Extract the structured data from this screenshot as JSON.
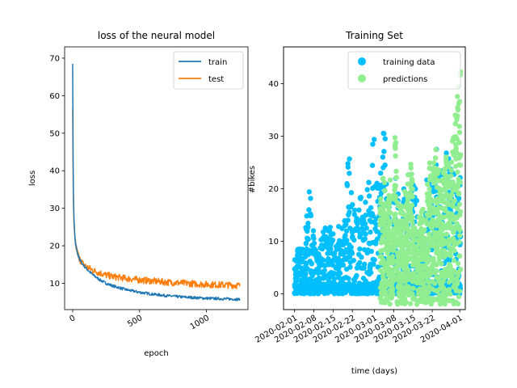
{
  "chart_data": [
    {
      "type": "line",
      "title": "loss of the neural model",
      "xlabel": "epoch",
      "ylabel": "loss",
      "xlim": [
        -60,
        1310
      ],
      "ylim": [
        3,
        73
      ],
      "xticks": [
        0,
        500,
        1000
      ],
      "yticks": [
        10,
        20,
        30,
        40,
        50,
        60,
        70
      ],
      "legend": "top-right",
      "series": [
        {
          "name": "train",
          "color": "#1f77b4",
          "x": [
            0,
            3,
            6,
            10,
            15,
            20,
            30,
            40,
            50,
            70,
            100,
            150,
            200,
            250,
            300,
            400,
            500,
            600,
            700,
            800,
            900,
            1000,
            1100,
            1200,
            1250
          ],
          "y": [
            68.5,
            45,
            33,
            27,
            23.5,
            21,
            19,
            17.5,
            16.5,
            15.3,
            14,
            12.3,
            11,
            10,
            9.3,
            8.3,
            7.6,
            7.1,
            6.7,
            6.4,
            6.2,
            6.0,
            5.9,
            5.8,
            5.7
          ]
        },
        {
          "name": "test",
          "color": "#ff7f0e",
          "x": [
            0,
            3,
            6,
            10,
            15,
            20,
            30,
            40,
            50,
            70,
            100,
            150,
            200,
            250,
            300,
            400,
            500,
            600,
            700,
            800,
            900,
            1000,
            1100,
            1200,
            1250
          ],
          "y": [
            56.5,
            40,
            31,
            26,
            23,
            21,
            19,
            17.5,
            16.5,
            15.5,
            14.5,
            13.5,
            12.8,
            12.2,
            11.8,
            11.3,
            10.9,
            10.6,
            10.3,
            10.1,
            9.9,
            9.7,
            9.6,
            9.5,
            9.4
          ]
        }
      ]
    },
    {
      "type": "scatter",
      "title": "Training Set",
      "xlabel": "time (days)",
      "ylabel": "#bikes",
      "xlim": [
        "2020-01-28",
        "2020-04-03"
      ],
      "ylim": [
        -3,
        47
      ],
      "xticks": [
        "2020-02-01",
        "2020-02-08",
        "2020-02-15",
        "2020-02-22",
        "2020-03-01",
        "2020-03-08",
        "2020-03-15",
        "2020-03-22",
        "2020-04-01"
      ],
      "yticks": [
        0,
        10,
        20,
        30,
        40
      ],
      "legend": "top-right",
      "series": [
        {
          "name": "training data",
          "color": "#00bfff",
          "x": [
            "2020-02-01",
            "2020-02-02",
            "2020-02-03",
            "2020-02-04",
            "2020-02-05",
            "2020-02-06",
            "2020-02-07",
            "2020-02-08",
            "2020-02-09",
            "2020-02-10",
            "2020-02-11",
            "2020-02-12",
            "2020-02-13",
            "2020-02-14",
            "2020-02-15",
            "2020-02-16",
            "2020-02-17",
            "2020-02-18",
            "2020-02-19",
            "2020-02-20",
            "2020-02-21",
            "2020-02-22",
            "2020-02-23",
            "2020-02-24",
            "2020-02-25",
            "2020-02-26",
            "2020-02-27",
            "2020-02-28",
            "2020-02-29",
            "2020-03-01",
            "2020-03-02",
            "2020-03-03",
            "2020-03-04",
            "2020-03-05",
            "2020-03-06",
            "2020-03-07",
            "2020-03-08",
            "2020-03-09",
            "2020-03-10",
            "2020-03-11",
            "2020-03-12",
            "2020-03-13",
            "2020-03-14",
            "2020-03-15",
            "2020-03-16",
            "2020-03-17",
            "2020-03-18",
            "2020-03-19",
            "2020-03-20",
            "2020-03-21",
            "2020-03-22",
            "2020-03-23",
            "2020-03-24",
            "2020-03-25",
            "2020-03-26",
            "2020-03-27",
            "2020-03-28",
            "2020-03-29",
            "2020-03-30",
            "2020-03-31",
            "2020-04-01"
          ],
          "y": [
            7,
            10,
            9,
            8,
            15,
            21,
            13,
            10,
            9,
            11,
            12,
            14,
            13,
            12,
            8,
            10,
            13,
            14,
            15,
            27,
            20,
            17,
            15,
            19,
            24,
            18,
            22,
            20,
            32,
            25,
            22,
            23,
            31,
            21,
            18,
            15,
            22,
            20,
            15,
            20,
            18,
            17,
            23,
            21,
            18,
            13,
            11,
            16,
            22,
            21,
            23,
            28,
            26,
            24,
            20,
            27,
            28,
            24,
            23,
            19,
            23
          ]
        },
        {
          "name": "predictions",
          "color": "#90ee90",
          "x": [
            "2020-03-03",
            "2020-03-04",
            "2020-03-05",
            "2020-03-06",
            "2020-03-07",
            "2020-03-08",
            "2020-03-09",
            "2020-03-10",
            "2020-03-11",
            "2020-03-12",
            "2020-03-13",
            "2020-03-14",
            "2020-03-15",
            "2020-03-16",
            "2020-03-17",
            "2020-03-18",
            "2020-03-19",
            "2020-03-20",
            "2020-03-21",
            "2020-03-22",
            "2020-03-23",
            "2020-03-24",
            "2020-03-25",
            "2020-03-26",
            "2020-03-27",
            "2020-03-28",
            "2020-03-29",
            "2020-03-30",
            "2020-03-31",
            "2020-04-01"
          ],
          "y": [
            19,
            22,
            16,
            24,
            12,
            30,
            18,
            17,
            16,
            20,
            23,
            26,
            14,
            12,
            15,
            17,
            14,
            21,
            25,
            27,
            28,
            26,
            22,
            24,
            27,
            23,
            30,
            35,
            40,
            43
          ]
        }
      ]
    }
  ]
}
